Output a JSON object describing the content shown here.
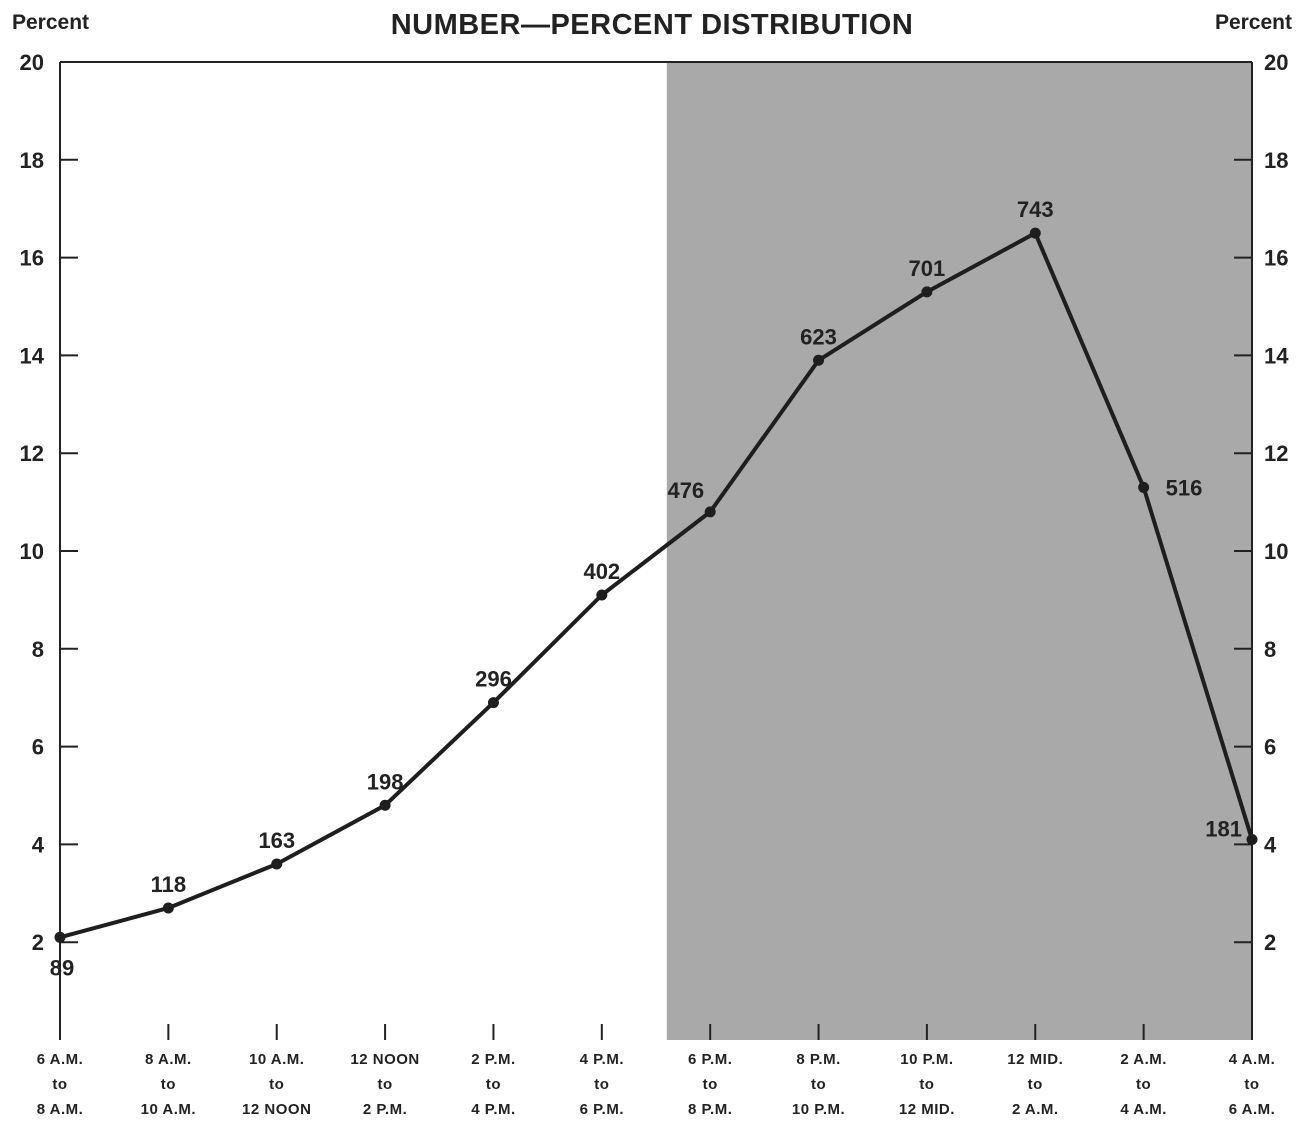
{
  "chart_data": {
    "type": "line",
    "title": "NUMBER—PERCENT DISTRIBUTION",
    "ylabel_left": "Percent",
    "ylabel_right": "Percent",
    "ylim": [
      0,
      20
    ],
    "yticks": [
      2,
      4,
      6,
      8,
      10,
      12,
      14,
      16,
      18,
      20
    ],
    "categories": [
      [
        "6 A.M.",
        "to",
        "8 A.M."
      ],
      [
        "8 A.M.",
        "to",
        "10 A.M."
      ],
      [
        "10 A.M.",
        "to",
        "12 NOON"
      ],
      [
        "12 NOON",
        "to",
        "2 P.M."
      ],
      [
        "2 P.M.",
        "to",
        "4 P.M."
      ],
      [
        "4 P.M.",
        "to",
        "6 P.M."
      ],
      [
        "6 P.M.",
        "to",
        "8 P.M."
      ],
      [
        "8 P.M.",
        "to",
        "10 P.M."
      ],
      [
        "10 P.M.",
        "to",
        "12 MID."
      ],
      [
        "12 MID.",
        "to",
        "2 A.M."
      ],
      [
        "2 A.M.",
        "to",
        "4 A.M."
      ],
      [
        "4 A.M.",
        "to",
        "6 A.M."
      ]
    ],
    "series": [
      {
        "percent": [
          2.1,
          2.7,
          3.6,
          4.8,
          6.9,
          9.1,
          10.8,
          13.9,
          15.3,
          16.5,
          11.3,
          4.1
        ],
        "numbers": [
          "89",
          "118",
          "163",
          "198",
          "296",
          "402",
          "476",
          "623",
          "701",
          "743",
          "516",
          "181"
        ]
      }
    ],
    "shaded_region": {
      "from_category_index": 5.6,
      "to_category_index": 11,
      "color": "#a9a9a9"
    },
    "grid": false,
    "line_color": "#1e1e1e"
  }
}
